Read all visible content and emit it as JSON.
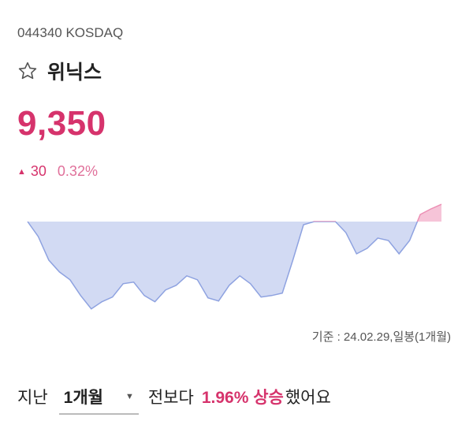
{
  "header": {
    "code": "044340 KOSDAQ",
    "name": "위닉스",
    "price": "9,350",
    "change": "30",
    "change_pct": "0.32%"
  },
  "chart_data": {
    "type": "area",
    "values": [
      9170,
      9014,
      8768,
      8645,
      8563,
      8399,
      8260,
      8334,
      8383,
      8522,
      8539,
      8399,
      8334,
      8457,
      8506,
      8604,
      8563,
      8375,
      8342,
      8506,
      8604,
      8522,
      8383,
      8399,
      8424,
      8768,
      9137,
      9170,
      9170,
      9170,
      9055,
      8834,
      8891,
      8998,
      8973,
      8834,
      8973,
      9244,
      9301,
      9350
    ],
    "ylim": [
      8200,
      9400
    ],
    "color_below": "#d2daf3",
    "line_below": "#8ea2e0",
    "color_above": "#f6c4d8",
    "line_above": "#ec8fb4"
  },
  "footnote": "기준 : 24.02.29,일봉(1개월)",
  "sentence": {
    "prefix": "지난",
    "period": "1개월",
    "middle": "전보다",
    "highlight": "1.96% 상승",
    "suffix": "했어요"
  }
}
